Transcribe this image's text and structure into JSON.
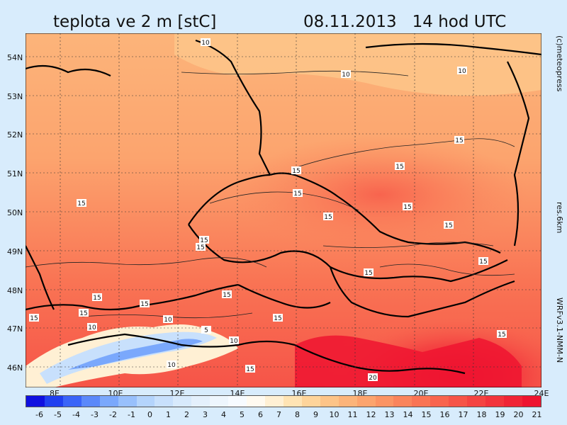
{
  "header": {
    "title": "teplota ve 2 m [stC]",
    "datetime": "08.11.2013   14 hod UTC"
  },
  "side_labels": {
    "copyright": "(c)meteopress",
    "resolution": "res.6km",
    "model": "WRFv3.1-NMM-N"
  },
  "lat_labels": [
    "54N",
    "53N",
    "52N",
    "51N",
    "50N",
    "49N",
    "48N",
    "47N",
    "46N"
  ],
  "lon_labels": [
    "8E",
    "10E",
    "12E",
    "14E",
    "16E",
    "18E",
    "20E",
    "22E",
    "24E"
  ],
  "colorbar": {
    "labels": [
      "-6",
      "-5",
      "-4",
      "-3",
      "-2",
      "-1",
      "0",
      "1",
      "2",
      "3",
      "4",
      "5",
      "6",
      "7",
      "8",
      "9",
      "10",
      "11",
      "12",
      "13",
      "14",
      "15",
      "16",
      "17",
      "18",
      "19",
      "20",
      "21"
    ],
    "colors": [
      "#1010e0",
      "#2040f0",
      "#3a64f8",
      "#5a88fa",
      "#7aa8fc",
      "#98c0fc",
      "#b4d4fc",
      "#c8e0fc",
      "#d8eafc",
      "#e4f0fc",
      "#eef6fd",
      "#f7fbff",
      "#fffaf0",
      "#fff0d4",
      "#ffe4b4",
      "#fed49a",
      "#fdc488",
      "#fcb47a",
      "#fca46e",
      "#fb9464",
      "#fa845c",
      "#f97454",
      "#f8644e",
      "#f65448",
      "#f44442",
      "#f2343c",
      "#f02436",
      "#ee1430"
    ]
  },
  "contour_labels": [
    "10",
    "10",
    "10",
    "15",
    "15",
    "15",
    "15",
    "15",
    "15",
    "15",
    "15",
    "15",
    "15",
    "15",
    "15",
    "15",
    "15",
    "15",
    "15",
    "10",
    "10",
    "10",
    "5",
    "10",
    "15",
    "15",
    "20",
    "15",
    "15"
  ]
}
